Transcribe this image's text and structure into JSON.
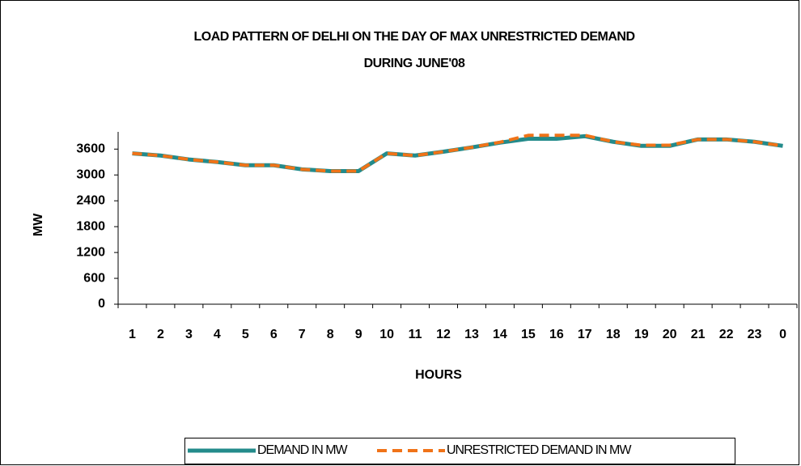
{
  "chart_data": {
    "type": "line",
    "title": [
      "LOAD PATTERN OF DELHI ON THE DAY OF MAX UNRESTRICTED DEMAND",
      "DURING JUNE'08"
    ],
    "x_label": "HOURS",
    "y_label": "MW",
    "categories": [
      "1",
      "2",
      "3",
      "4",
      "5",
      "6",
      "7",
      "8",
      "9",
      "10",
      "11",
      "12",
      "13",
      "14",
      "15",
      "16",
      "17",
      "18",
      "19",
      "20",
      "21",
      "22",
      "23",
      "0"
    ],
    "series": [
      {
        "name": "DEMAND IN MW",
        "color": "#238b8b",
        "dash": false,
        "values": [
          3500,
          3450,
          3360,
          3300,
          3225,
          3225,
          3130,
          3090,
          3090,
          3500,
          3450,
          3540,
          3640,
          3750,
          3840,
          3840,
          3900,
          3770,
          3675,
          3675,
          3825,
          3825,
          3770,
          3675
        ]
      },
      {
        "name": "UNRESTRICTED DEMAND IN MW",
        "color": "#f07318",
        "dash": true,
        "values": [
          3500,
          3450,
          3360,
          3300,
          3225,
          3225,
          3130,
          3090,
          3090,
          3500,
          3450,
          3540,
          3640,
          3760,
          3920,
          3920,
          3920,
          3770,
          3690,
          3690,
          3825,
          3825,
          3770,
          3675
        ]
      }
    ],
    "ylim": [
      0,
      4000
    ],
    "yticks": [
      0,
      600,
      1200,
      1800,
      2400,
      3000,
      3600
    ],
    "grid": false
  }
}
